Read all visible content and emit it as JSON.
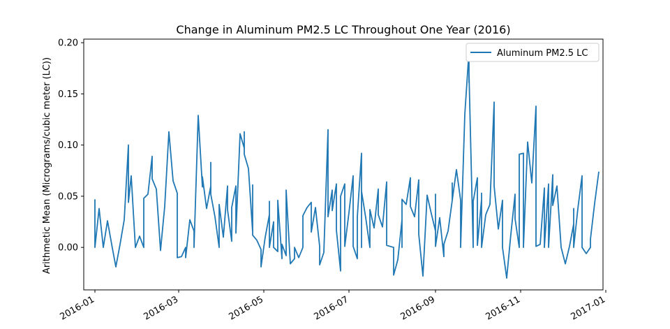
{
  "chart_data": {
    "type": "line",
    "title": "Change in Aluminum PM2.5 LC Throughout One Year (2016)",
    "xlabel": "",
    "ylabel": "Arithmetic Mean (Micrograms/cubic meter (LC))",
    "xlim": [
      "2015-12-24",
      "2016-12-30"
    ],
    "ylim": [
      -0.0415,
      0.2035
    ],
    "x_ticks": [
      "2016-01",
      "2016-03",
      "2016-05",
      "2016-07",
      "2016-09",
      "2016-11",
      "2017-01"
    ],
    "y_ticks": [
      "0.00",
      "0.05",
      "0.10",
      "0.15",
      "0.20"
    ],
    "grid": false,
    "legend_position": "top-right",
    "series": [
      {
        "name": "Aluminum PM2.5 LC",
        "color": "#1f77b4",
        "points": [
          [
            "2016-01-01",
            0.047
          ],
          [
            "2016-01-01",
            0.0
          ],
          [
            "2016-01-04",
            0.038
          ],
          [
            "2016-01-07",
            0.0
          ],
          [
            "2016-01-10",
            0.026
          ],
          [
            "2016-01-13",
            0.003
          ],
          [
            "2016-01-16",
            -0.019
          ],
          [
            "2016-01-19",
            0.003
          ],
          [
            "2016-01-22",
            0.027
          ],
          [
            "2016-01-25",
            0.1
          ],
          [
            "2016-01-25",
            0.044
          ],
          [
            "2016-01-27",
            0.07
          ],
          [
            "2016-01-30",
            0.0
          ],
          [
            "2016-02-02",
            0.011
          ],
          [
            "2016-02-05",
            0.0
          ],
          [
            "2016-02-05",
            0.048
          ],
          [
            "2016-02-08",
            0.052
          ],
          [
            "2016-02-11",
            0.089
          ],
          [
            "2016-02-11",
            0.067
          ],
          [
            "2016-02-14",
            0.057
          ],
          [
            "2016-02-17",
            -0.003
          ],
          [
            "2016-02-20",
            0.04
          ],
          [
            "2016-02-23",
            0.113
          ],
          [
            "2016-02-26",
            0.065
          ],
          [
            "2016-02-29",
            0.053
          ],
          [
            "2016-02-29",
            -0.01
          ],
          [
            "2016-03-03",
            -0.009
          ],
          [
            "2016-03-06",
            0.0
          ],
          [
            "2016-03-06",
            -0.01
          ],
          [
            "2016-03-09",
            0.027
          ],
          [
            "2016-03-12",
            0.016
          ],
          [
            "2016-03-12",
            0.0
          ],
          [
            "2016-03-15",
            0.129
          ],
          [
            "2016-03-18",
            0.059
          ],
          [
            "2016-03-18",
            0.069
          ],
          [
            "2016-03-21",
            0.038
          ],
          [
            "2016-03-24",
            0.06
          ],
          [
            "2016-03-24",
            0.083
          ],
          [
            "2016-03-24",
            0.052
          ],
          [
            "2016-03-27",
            0.03
          ],
          [
            "2016-03-30",
            0.0
          ],
          [
            "2016-03-30",
            0.042
          ],
          [
            "2016-04-02",
            0.01
          ],
          [
            "2016-04-05",
            0.06
          ],
          [
            "2016-04-05",
            0.037
          ],
          [
            "2016-04-08",
            0.006
          ],
          [
            "2016-04-08",
            0.039
          ],
          [
            "2016-04-11",
            0.06
          ],
          [
            "2016-04-11",
            0.014
          ],
          [
            "2016-04-14",
            0.111
          ],
          [
            "2016-04-17",
            0.097
          ],
          [
            "2016-04-17",
            0.113
          ],
          [
            "2016-04-17",
            0.091
          ],
          [
            "2016-04-20",
            0.077
          ],
          [
            "2016-04-23",
            0.015
          ],
          [
            "2016-04-23",
            0.061
          ],
          [
            "2016-04-23",
            0.012
          ],
          [
            "2016-04-26",
            0.007
          ],
          [
            "2016-04-29",
            -0.002
          ],
          [
            "2016-04-29",
            -0.019
          ],
          [
            "2016-05-02",
            0.01
          ],
          [
            "2016-05-05",
            0.032
          ],
          [
            "2016-05-05",
            0.045
          ],
          [
            "2016-05-05",
            0.0
          ],
          [
            "2016-05-08",
            0.025
          ],
          [
            "2016-05-08",
            0.0
          ],
          [
            "2016-05-11",
            -0.004
          ],
          [
            "2016-05-11",
            0.046
          ],
          [
            "2016-05-14",
            -0.011
          ],
          [
            "2016-05-14",
            0.003
          ],
          [
            "2016-05-17",
            -0.008
          ],
          [
            "2016-05-17",
            0.056
          ],
          [
            "2016-05-20",
            -0.016
          ],
          [
            "2016-05-23",
            -0.011
          ],
          [
            "2016-05-23",
            0.0
          ],
          [
            "2016-05-26",
            -0.01
          ],
          [
            "2016-05-29",
            0.0
          ],
          [
            "2016-05-29",
            0.031
          ],
          [
            "2016-06-01",
            0.039
          ],
          [
            "2016-06-04",
            0.044
          ],
          [
            "2016-06-04",
            0.015
          ],
          [
            "2016-06-07",
            0.039
          ],
          [
            "2016-06-10",
            0.001
          ],
          [
            "2016-06-10",
            -0.017
          ],
          [
            "2016-06-13",
            -0.005
          ],
          [
            "2016-06-16",
            0.115
          ],
          [
            "2016-06-16",
            0.03
          ],
          [
            "2016-06-19",
            0.056
          ],
          [
            "2016-06-19",
            0.036
          ],
          [
            "2016-06-22",
            0.062
          ],
          [
            "2016-06-22",
            0.017
          ],
          [
            "2016-06-25",
            -0.023
          ],
          [
            "2016-06-25",
            0.05
          ],
          [
            "2016-06-28",
            0.062
          ],
          [
            "2016-06-28",
            0.001
          ],
          [
            "2016-07-01",
            0.034
          ],
          [
            "2016-07-04",
            0.07
          ],
          [
            "2016-07-04",
            0.001
          ],
          [
            "2016-07-07",
            -0.011
          ],
          [
            "2016-07-07",
            0.03
          ],
          [
            "2016-07-10",
            0.092
          ],
          [
            "2016-07-10",
            0.0
          ],
          [
            "2016-07-10",
            0.055
          ],
          [
            "2016-07-13",
            0.029
          ],
          [
            "2016-07-16",
            0.0
          ],
          [
            "2016-07-16",
            0.037
          ],
          [
            "2016-07-19",
            0.019
          ],
          [
            "2016-07-22",
            0.057
          ],
          [
            "2016-07-22",
            0.032
          ],
          [
            "2016-07-25",
            0.02
          ],
          [
            "2016-07-28",
            0.064
          ],
          [
            "2016-07-28",
            0.002
          ],
          [
            "2016-08-02",
            0.0
          ],
          [
            "2016-08-02",
            -0.027
          ],
          [
            "2016-08-05",
            -0.012
          ],
          [
            "2016-08-08",
            0.027
          ],
          [
            "2016-08-08",
            0.0
          ],
          [
            "2016-08-08",
            0.047
          ],
          [
            "2016-08-11",
            0.042
          ],
          [
            "2016-08-14",
            0.068
          ],
          [
            "2016-08-14",
            0.04
          ],
          [
            "2016-08-17",
            0.03
          ],
          [
            "2016-08-20",
            0.066
          ],
          [
            "2016-08-20",
            0.013
          ],
          [
            "2016-08-23",
            -0.028
          ],
          [
            "2016-08-26",
            0.051
          ],
          [
            "2016-08-29",
            0.033
          ],
          [
            "2016-09-01",
            0.016
          ],
          [
            "2016-09-01",
            0.052
          ],
          [
            "2016-09-01",
            0.001
          ],
          [
            "2016-09-04",
            0.029
          ],
          [
            "2016-09-07",
            -0.009
          ],
          [
            "2016-09-07",
            0.003
          ],
          [
            "2016-09-10",
            0.016
          ],
          [
            "2016-09-13",
            0.046
          ],
          [
            "2016-09-13",
            0.063
          ],
          [
            "2016-09-13",
            0.046
          ],
          [
            "2016-09-16",
            0.076
          ],
          [
            "2016-09-19",
            0.046
          ],
          [
            "2016-09-19",
            0.0
          ],
          [
            "2016-09-22",
            0.13
          ],
          [
            "2016-09-25",
            0.192
          ],
          [
            "2016-09-25",
            0.161
          ],
          [
            "2016-09-25",
            0.17
          ],
          [
            "2016-09-28",
            0.0
          ],
          [
            "2016-09-28",
            0.045
          ],
          [
            "2016-10-01",
            0.068
          ],
          [
            "2016-10-01",
            0.002
          ],
          [
            "2016-10-04",
            0.047
          ],
          [
            "2016-10-04",
            0.053
          ],
          [
            "2016-10-04",
            0.0
          ],
          [
            "2016-10-07",
            0.032
          ],
          [
            "2016-10-10",
            0.042
          ],
          [
            "2016-10-13",
            0.142
          ],
          [
            "2016-10-13",
            0.06
          ],
          [
            "2016-10-16",
            0.018
          ],
          [
            "2016-10-19",
            0.046
          ],
          [
            "2016-10-19",
            0.0
          ],
          [
            "2016-10-22",
            -0.03
          ],
          [
            "2016-10-25",
            0.013
          ],
          [
            "2016-10-28",
            0.052
          ],
          [
            "2016-10-28",
            0.028
          ],
          [
            "2016-10-31",
            0.0
          ],
          [
            "2016-10-31",
            0.091
          ],
          [
            "2016-11-03",
            0.092
          ],
          [
            "2016-11-03",
            0.0
          ],
          [
            "2016-11-06",
            0.103
          ],
          [
            "2016-11-09",
            0.063
          ],
          [
            "2016-11-12",
            0.138
          ],
          [
            "2016-11-12",
            0.001
          ],
          [
            "2016-11-15",
            0.003
          ],
          [
            "2016-11-18",
            0.058
          ],
          [
            "2016-11-18",
            0.0
          ],
          [
            "2016-11-21",
            0.062
          ],
          [
            "2016-11-21",
            0.0
          ],
          [
            "2016-11-24",
            0.071
          ],
          [
            "2016-11-24",
            0.041
          ],
          [
            "2016-11-27",
            0.06
          ],
          [
            "2016-11-30",
            0.0
          ],
          [
            "2016-12-03",
            -0.016
          ],
          [
            "2016-12-06",
            0.001
          ],
          [
            "2016-12-09",
            0.023
          ],
          [
            "2016-12-09",
            0.038
          ],
          [
            "2016-12-09",
            0.0
          ],
          [
            "2016-12-12",
            0.038
          ],
          [
            "2016-12-15",
            0.07
          ],
          [
            "2016-12-15",
            0.0
          ],
          [
            "2016-12-18",
            -0.006
          ],
          [
            "2016-12-21",
            0.0
          ],
          [
            "2016-12-21",
            0.008
          ],
          [
            "2016-12-24",
            0.043
          ],
          [
            "2016-12-27",
            0.074
          ]
        ]
      }
    ]
  }
}
